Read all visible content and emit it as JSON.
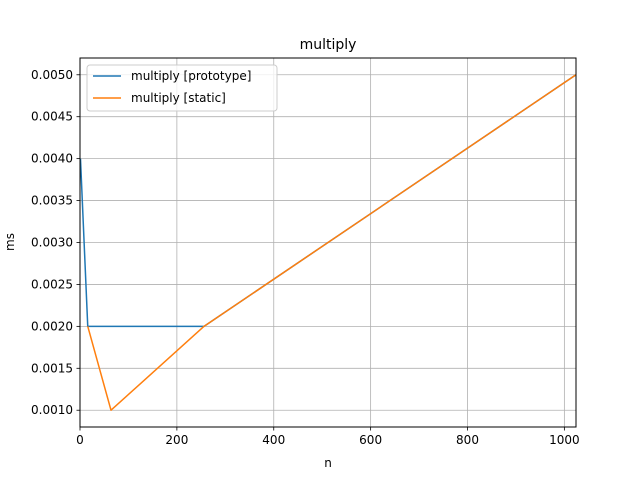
{
  "chart_data": {
    "type": "line",
    "title": "multiply",
    "xlabel": "n",
    "ylabel": "ms",
    "xlim": [
      0,
      1024
    ],
    "ylim": [
      0.0008,
      0.0052
    ],
    "xticks": [
      0,
      200,
      400,
      600,
      800,
      1000
    ],
    "xtick_labels": [
      "0",
      "200",
      "400",
      "600",
      "800",
      "1000"
    ],
    "yticks": [
      0.001,
      0.0015,
      0.002,
      0.0025,
      0.003,
      0.0035,
      0.004,
      0.0045,
      0.005
    ],
    "ytick_labels": [
      "0.0010",
      "0.0015",
      "0.0020",
      "0.0025",
      "0.0030",
      "0.0035",
      "0.0040",
      "0.0045",
      "0.0050"
    ],
    "grid": true,
    "legend_position": "top-left",
    "series": [
      {
        "name": "multiply [prototype]",
        "color": "#1f77b4",
        "x": [
          1,
          16,
          64,
          256,
          1024
        ],
        "y": [
          0.004,
          0.002,
          0.002,
          0.002,
          0.005
        ]
      },
      {
        "name": "multiply [static]",
        "color": "#ff7f0e",
        "x": [
          16,
          64,
          256,
          1024
        ],
        "y": [
          0.002,
          0.001,
          0.002,
          0.005
        ]
      }
    ]
  }
}
